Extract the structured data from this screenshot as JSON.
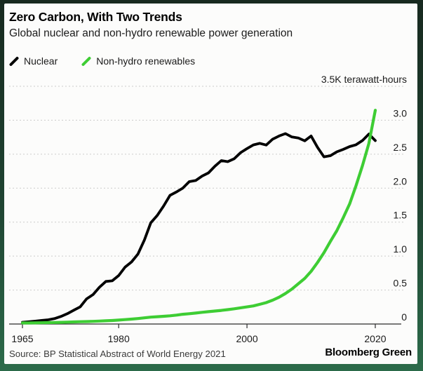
{
  "frame": {
    "border_color": "#1f4432",
    "card_color": "#fcfcfb"
  },
  "header": {
    "title": "Zero Carbon, With Two Trends",
    "subtitle": "Global nuclear and non-hydro renewable power generation"
  },
  "legend": [
    {
      "label": "Nuclear",
      "color": "#000000"
    },
    {
      "label": "Non-hydro renewables",
      "color": "#3ecd34"
    }
  ],
  "footer": {
    "source": "Source: BP Statistical Abstract of World Energy 2021",
    "brand": "Bloomberg Green"
  },
  "chart_data": {
    "type": "line",
    "title": "Zero Carbon, With Two Trends",
    "subtitle": "Global nuclear and non-hydro renewable power generation",
    "unit_label": "3.5K terawatt-hours",
    "xlabel": "",
    "ylabel": "terawatt-hours (thousands)",
    "xlim": [
      1965,
      2024
    ],
    "ylim": [
      0,
      3.5
    ],
    "grid": "dashed horizontal",
    "legend_position": "top-left",
    "xticks": [
      1965,
      1980,
      2000,
      2020
    ],
    "yticks": [
      {
        "value": 0,
        "label": "0"
      },
      {
        "value": 0.5,
        "label": "0.5"
      },
      {
        "value": 1,
        "label": "1.0"
      },
      {
        "value": 1.5,
        "label": "1.5"
      },
      {
        "value": 2,
        "label": "2.0"
      },
      {
        "value": 2.5,
        "label": "2.5"
      },
      {
        "value": 3,
        "label": "3.0"
      },
      {
        "value": 3.5,
        "label": "3.5K terawatt-hours"
      }
    ],
    "x": [
      1965,
      1966,
      1967,
      1968,
      1969,
      1970,
      1971,
      1972,
      1973,
      1974,
      1975,
      1976,
      1977,
      1978,
      1979,
      1980,
      1981,
      1982,
      1983,
      1984,
      1985,
      1986,
      1987,
      1988,
      1989,
      1990,
      1991,
      1992,
      1993,
      1994,
      1995,
      1996,
      1997,
      1998,
      1999,
      2000,
      2001,
      2002,
      2003,
      2004,
      2005,
      2006,
      2007,
      2008,
      2009,
      2010,
      2011,
      2012,
      2013,
      2014,
      2015,
      2016,
      2017,
      2018,
      2019,
      2020
    ],
    "series": [
      {
        "name": "Nuclear",
        "color": "#000000",
        "stroke_width": 3.8,
        "values": [
          0.026,
          0.033,
          0.042,
          0.053,
          0.062,
          0.079,
          0.111,
          0.152,
          0.203,
          0.252,
          0.37,
          0.433,
          0.541,
          0.627,
          0.636,
          0.713,
          0.837,
          0.914,
          1.029,
          1.236,
          1.489,
          1.596,
          1.737,
          1.894,
          1.944,
          2.001,
          2.096,
          2.112,
          2.177,
          2.225,
          2.322,
          2.406,
          2.39,
          2.432,
          2.522,
          2.582,
          2.637,
          2.66,
          2.635,
          2.722,
          2.768,
          2.803,
          2.754,
          2.739,
          2.697,
          2.768,
          2.6,
          2.461,
          2.478,
          2.535,
          2.571,
          2.612,
          2.639,
          2.701,
          2.796,
          2.7
        ]
      },
      {
        "name": "Non-hydro renewables",
        "color": "#3ecd34",
        "stroke_width": 4.2,
        "values": [
          0.015,
          0.016,
          0.017,
          0.019,
          0.021,
          0.023,
          0.025,
          0.028,
          0.031,
          0.034,
          0.036,
          0.039,
          0.043,
          0.047,
          0.052,
          0.058,
          0.065,
          0.072,
          0.081,
          0.091,
          0.101,
          0.107,
          0.114,
          0.121,
          0.131,
          0.143,
          0.152,
          0.161,
          0.172,
          0.182,
          0.191,
          0.2,
          0.212,
          0.224,
          0.238,
          0.252,
          0.266,
          0.29,
          0.315,
          0.351,
          0.394,
          0.449,
          0.514,
          0.593,
          0.671,
          0.775,
          0.906,
          1.05,
          1.216,
          1.373,
          1.565,
          1.768,
          2.036,
          2.331,
          2.656,
          3.147
        ]
      }
    ]
  }
}
